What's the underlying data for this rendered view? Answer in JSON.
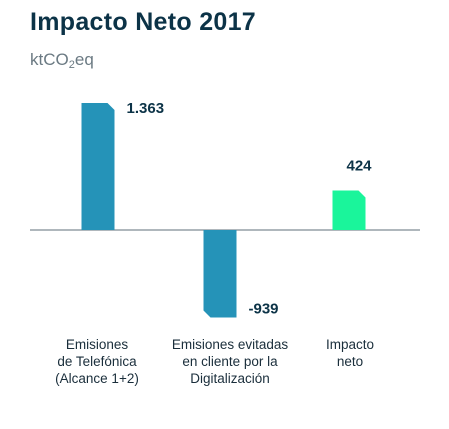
{
  "title": "Impacto Neto 2017",
  "subtitle": {
    "prefix": "ktCO",
    "sub": "2",
    "suffix": "eq"
  },
  "colors": {
    "bar": "#2593b8",
    "net_bar": "#1af59b",
    "baseline": "#7f8c93",
    "text": "#0c3347"
  },
  "chart_data": {
    "type": "bar",
    "title": "Impacto Neto 2017",
    "ylabel": "ktCO2eq",
    "grid": false,
    "categories": [
      [
        "Emisiones",
        "de Telefónica",
        "(Alcance 1+2)"
      ],
      [
        "Emisiones evitadas",
        "en cliente por la",
        "Digitalización"
      ],
      [
        "Impacto",
        "neto"
      ]
    ],
    "values": [
      1363,
      -939,
      424
    ],
    "value_labels": [
      "1.363",
      "-939",
      "424"
    ]
  }
}
